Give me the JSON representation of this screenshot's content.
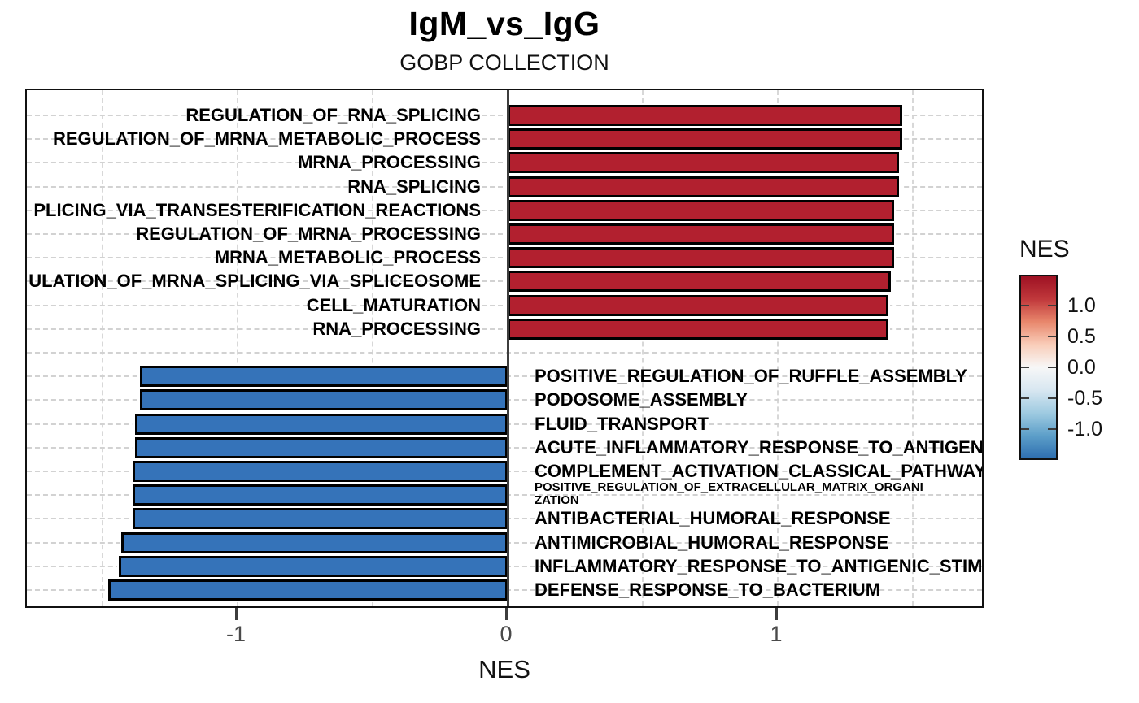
{
  "header": {
    "title": "IgM_vs_IgG",
    "subtitle": "GOBP COLLECTION"
  },
  "chart_data": {
    "type": "bar",
    "orientation": "horizontal-diverging",
    "title": "IgM_vs_IgG",
    "subtitle": "GOBP COLLECTION",
    "xlabel": "NES",
    "xlim": [
      -1.78,
      1.77
    ],
    "x_ticks": [
      "-1",
      "0",
      "1"
    ],
    "x_tick_values": [
      -1,
      0,
      1
    ],
    "grid": "dashed, every 0.5 on x; one dashed line per category row",
    "colors": {
      "positive_bar": "#B2202F",
      "negative_bar": "#3573B9",
      "bar_border": "#000000",
      "zero_line": "#3d3d3d",
      "grid_line": "#d2d2d2",
      "tick_text": "#4a4a4a",
      "colorbar_gradient_top_to_bottom": [
        "#9E1123",
        "#C0383B",
        "#E8876C",
        "#F9CDB9",
        "#F7F7F7",
        "#D8E7F1",
        "#9FCBE1",
        "#5D9FC9",
        "#2E6FB0"
      ]
    },
    "legend": {
      "title": "NES",
      "position": "right",
      "range": [
        -1.5,
        1.5
      ],
      "tick_labels": [
        "1.0",
        "0.5",
        "0.0",
        "-0.5",
        "-1.0"
      ],
      "tick_values": [
        1.0,
        0.5,
        0.0,
        -0.5,
        -1.0
      ]
    },
    "rows": [
      {
        "label": "REGULATION_OF_RNA_SPLICING",
        "value": 1.46
      },
      {
        "label": "REGULATION_OF_MRNA_METABOLIC_PROCESS",
        "value": 1.46
      },
      {
        "label": "MRNA_PROCESSING",
        "value": 1.45
      },
      {
        "label": "RNA_SPLICING",
        "value": 1.45
      },
      {
        "label": "PLICING_VIA_TRANSESTERIFICATION_REACTIONS",
        "value": 1.43,
        "clipped": "left"
      },
      {
        "label": "REGULATION_OF_MRNA_PROCESSING",
        "value": 1.43
      },
      {
        "label": "MRNA_METABOLIC_PROCESS",
        "value": 1.43
      },
      {
        "label": "ULATION_OF_MRNA_SPLICING_VIA_SPLICEOSOME",
        "value": 1.42,
        "clipped": "left"
      },
      {
        "label": "CELL_MATURATION",
        "value": 1.41
      },
      {
        "label": "RNA_PROCESSING",
        "value": 1.41
      },
      {
        "label": "",
        "value": null,
        "spacer": true
      },
      {
        "label": "POSITIVE_REGULATION_OF_RUFFLE_ASSEMBLY",
        "value": -1.36
      },
      {
        "label": "PODOSOME_ASSEMBLY",
        "value": -1.36
      },
      {
        "label": "FLUID_TRANSPORT",
        "value": -1.38
      },
      {
        "label": "ACUTE_INFLAMMATORY_RESPONSE_TO_ANTIGEN",
        "value": -1.38,
        "clipped": "right"
      },
      {
        "label": "COMPLEMENT_ACTIVATION_CLASSICAL_PATHWAY",
        "value": -1.39,
        "clipped": "right"
      },
      {
        "label": "POSITIVE_REGULATION_OF_EXTRACELLULAR_MATRIX_ORGANI",
        "label2": "ZATION",
        "value": -1.39,
        "small": true
      },
      {
        "label": "ANTIBACTERIAL_HUMORAL_RESPONSE",
        "value": -1.39
      },
      {
        "label": "ANTIMICROBIAL_HUMORAL_RESPONSE",
        "value": -1.43
      },
      {
        "label": "INFLAMMATORY_RESPONSE_TO_ANTIGENIC_STIM",
        "value": -1.44,
        "clipped": "right"
      },
      {
        "label": "DEFENSE_RESPONSE_TO_BACTERIUM",
        "value": -1.48
      }
    ]
  }
}
